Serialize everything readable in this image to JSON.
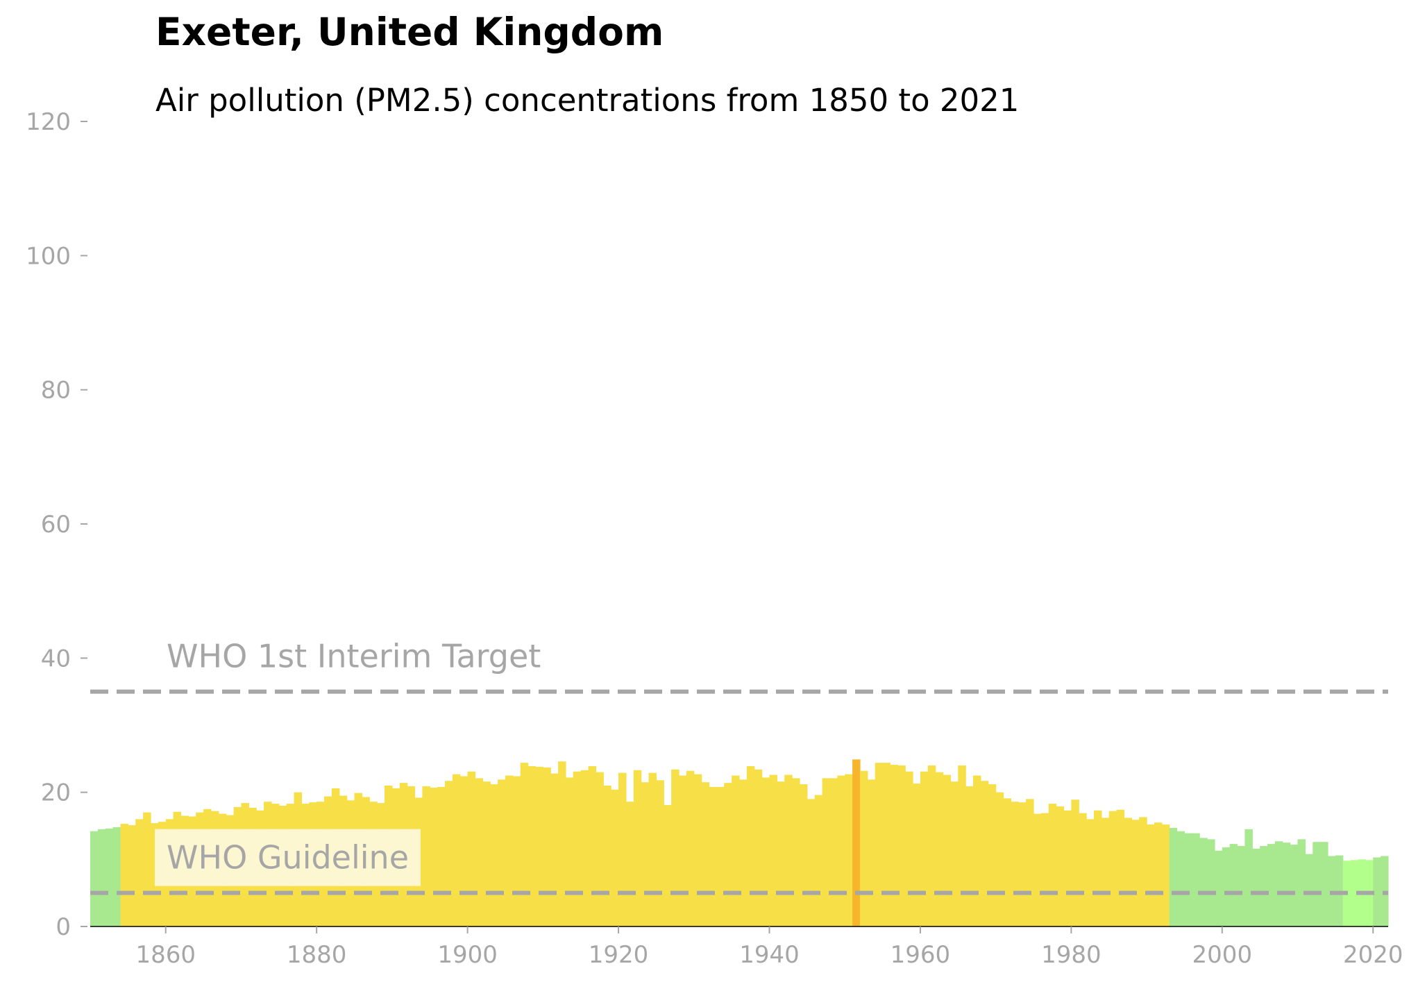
{
  "header": {
    "title": "Exeter, United Kingdom",
    "subtitle": "Air pollution (PM2.5) concentrations from 1850 to 2021"
  },
  "colors": {
    "good": "#a8e990",
    "best": "#b3ff8c",
    "moderate": "#f7df47",
    "highlight": "#f7b52c",
    "reference_line": "#a6a6a6",
    "tick_text": "#a6a6a6"
  },
  "chart_data": {
    "type": "bar",
    "title": "Exeter, United Kingdom",
    "subtitle": "Air pollution (PM2.5) concentrations from 1850 to 2021",
    "xlabel": "",
    "ylabel": "",
    "xlim": [
      1850,
      2022
    ],
    "ylim": [
      0,
      120
    ],
    "x_ticks": [
      1860,
      1880,
      1900,
      1920,
      1940,
      1960,
      1980,
      2000,
      2020
    ],
    "y_ticks": [
      0,
      20,
      40,
      60,
      80,
      100,
      120
    ],
    "grid": false,
    "years": [
      1850,
      1851,
      1852,
      1853,
      1854,
      1855,
      1856,
      1857,
      1858,
      1859,
      1860,
      1861,
      1862,
      1863,
      1864,
      1865,
      1866,
      1867,
      1868,
      1869,
      1870,
      1871,
      1872,
      1873,
      1874,
      1875,
      1876,
      1877,
      1878,
      1879,
      1880,
      1881,
      1882,
      1883,
      1884,
      1885,
      1886,
      1887,
      1888,
      1889,
      1890,
      1891,
      1892,
      1893,
      1894,
      1895,
      1896,
      1897,
      1898,
      1899,
      1900,
      1901,
      1902,
      1903,
      1904,
      1905,
      1906,
      1907,
      1908,
      1909,
      1910,
      1911,
      1912,
      1913,
      1914,
      1915,
      1916,
      1917,
      1918,
      1919,
      1920,
      1921,
      1922,
      1923,
      1924,
      1925,
      1926,
      1927,
      1928,
      1929,
      1930,
      1931,
      1932,
      1933,
      1934,
      1935,
      1936,
      1937,
      1938,
      1939,
      1940,
      1941,
      1942,
      1943,
      1944,
      1945,
      1946,
      1947,
      1948,
      1949,
      1950,
      1951,
      1952,
      1953,
      1954,
      1955,
      1956,
      1957,
      1958,
      1959,
      1960,
      1961,
      1962,
      1963,
      1964,
      1965,
      1966,
      1967,
      1968,
      1969,
      1970,
      1971,
      1972,
      1973,
      1974,
      1975,
      1976,
      1977,
      1978,
      1979,
      1980,
      1981,
      1982,
      1983,
      1984,
      1985,
      1986,
      1987,
      1988,
      1989,
      1990,
      1991,
      1992,
      1993,
      1994,
      1995,
      1996,
      1997,
      1998,
      1999,
      2000,
      2001,
      2002,
      2003,
      2004,
      2005,
      2006,
      2007,
      2008,
      2009,
      2010,
      2011,
      2012,
      2013,
      2014,
      2015,
      2016,
      2017,
      2018,
      2019,
      2020,
      2021
    ],
    "values": [
      14.2,
      14.5,
      14.6,
      14.8,
      15.3,
      15.1,
      16.0,
      17.0,
      15.4,
      15.6,
      16.0,
      17.1,
      16.5,
      16.4,
      17.0,
      17.5,
      17.2,
      16.8,
      16.6,
      17.8,
      18.4,
      17.7,
      17.3,
      18.6,
      18.3,
      18.0,
      18.3,
      20.0,
      18.3,
      18.5,
      18.6,
      19.4,
      20.6,
      19.5,
      18.8,
      19.9,
      19.3,
      18.6,
      18.4,
      21.0,
      20.6,
      21.4,
      20.9,
      19.2,
      20.9,
      20.7,
      20.8,
      21.7,
      22.7,
      22.4,
      23.1,
      22.1,
      21.6,
      21.2,
      21.9,
      22.5,
      22.4,
      24.4,
      23.9,
      23.8,
      23.7,
      22.8,
      24.6,
      22.2,
      23.1,
      23.3,
      23.9,
      23.0,
      21.0,
      20.4,
      22.9,
      18.6,
      23.3,
      21.5,
      22.9,
      21.8,
      18.1,
      23.4,
      22.5,
      23.2,
      22.7,
      21.5,
      20.8,
      20.8,
      21.4,
      22.5,
      21.9,
      23.9,
      23.4,
      22.2,
      22.6,
      21.6,
      22.6,
      22.1,
      21.2,
      19.0,
      19.6,
      22.1,
      22.1,
      22.5,
      22.7,
      24.9,
      23.2,
      21.9,
      24.4,
      24.4,
      24.1,
      24.0,
      23.1,
      21.3,
      23.1,
      24.0,
      23.0,
      22.6,
      21.6,
      24.0,
      20.9,
      22.5,
      21.7,
      21.2,
      20.0,
      19.1,
      18.6,
      18.5,
      19.0,
      16.8,
      16.9,
      18.3,
      17.9,
      17.3,
      18.9,
      16.9,
      16.0,
      17.3,
      16.2,
      17.2,
      17.4,
      16.2,
      15.9,
      16.3,
      15.2,
      15.5,
      15.2,
      14.7,
      14.2,
      13.9,
      13.9,
      13.2,
      13.0,
      11.3,
      11.8,
      12.3,
      12.0,
      14.5,
      11.6,
      12.0,
      12.3,
      12.7,
      12.5,
      12.2,
      13.0,
      10.8,
      12.6,
      12.6,
      10.5,
      10.6,
      9.8,
      9.9,
      10.0,
      9.9,
      10.3,
      10.5
    ],
    "highlight_year": 1951,
    "reference_lines": [
      {
        "label": "WHO 1st Interim Target",
        "value": 35
      },
      {
        "label": "WHO Guideline",
        "value": 5
      }
    ]
  }
}
